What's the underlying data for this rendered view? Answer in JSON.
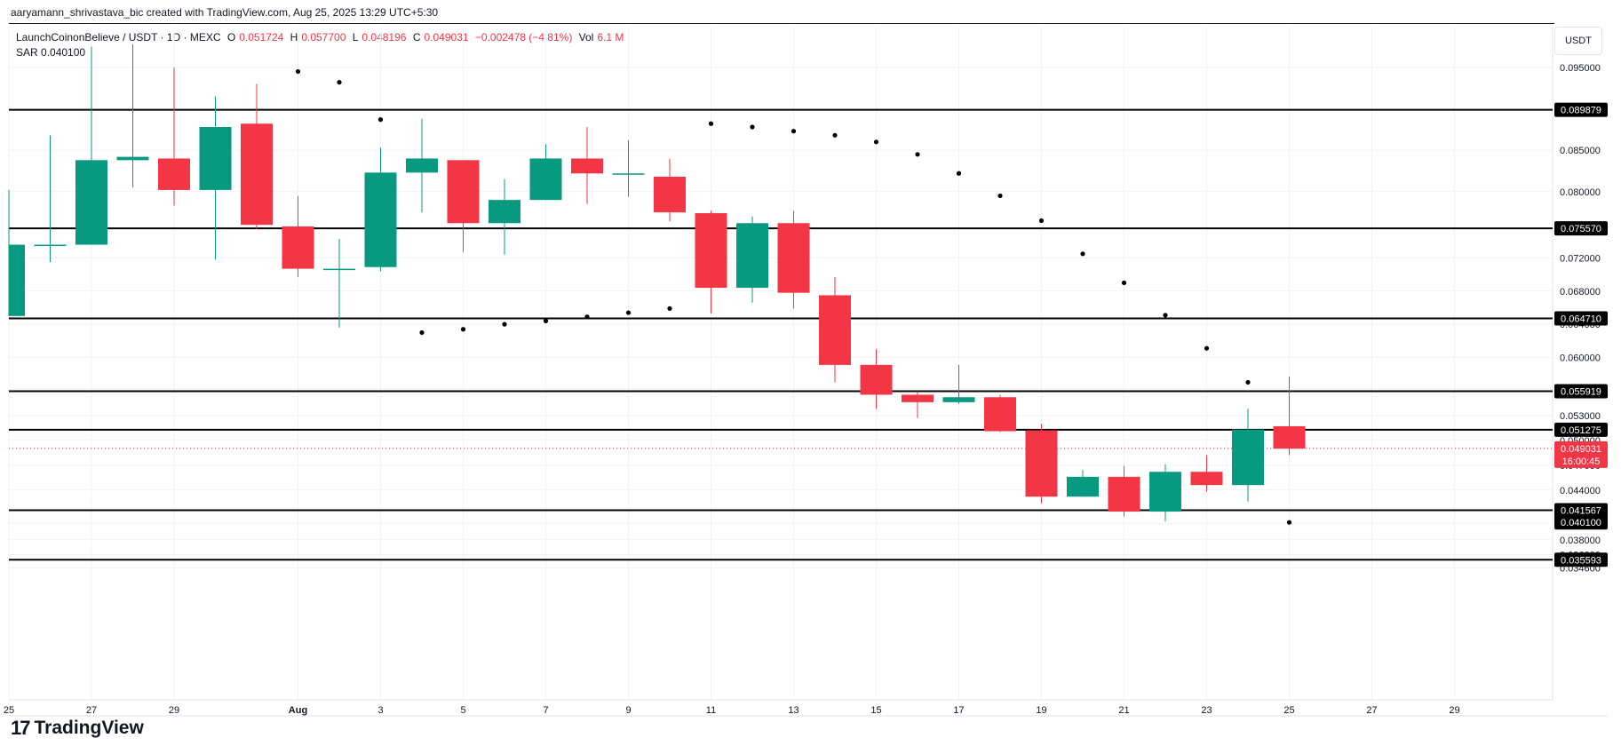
{
  "header": {
    "credit": "aaryamann_shrivastava_bic created with TradingView.com, Aug 25, 2025 13:29 UTC+5:30"
  },
  "legend": {
    "symbol": "LaunchCoinonBelieve / USDT · 1D · MEXC",
    "open_label": "O",
    "open": "0.051724",
    "high_label": "H",
    "high": "0.057700",
    "low_label": "L",
    "low": "0.048196",
    "close_label": "C",
    "close": "0.049031",
    "change": "−0.002478 (−4.81%)",
    "vol_label": "Vol",
    "vol": "6.1 M",
    "sar_label": "SAR",
    "sar_value": "0.040100"
  },
  "price_scale": {
    "unit": "USDT"
  },
  "branding": {
    "logo_text": "TradingView",
    "logo_icon": "tradingview-logo-icon"
  },
  "colors": {
    "up": "#089981",
    "down": "#f23645",
    "sar": "#000000",
    "level": "#000000"
  },
  "chart_data": {
    "type": "candlestick",
    "y_axis": {
      "ticks": [
        "0.095000",
        "0.085000",
        "0.080000",
        "0.072000",
        "0.068000",
        "0.064000",
        "0.060000",
        "0.053000",
        "0.050000",
        "0.047000",
        "0.044000",
        "0.040000",
        "0.038000",
        "0.036200",
        "0.034600"
      ]
    },
    "x_axis": {
      "ticks": [
        {
          "day": 25,
          "label": "25"
        },
        {
          "day": 27,
          "label": "27"
        },
        {
          "day": 29,
          "label": "29"
        },
        {
          "day": 32,
          "label": "Aug"
        },
        {
          "day": 34,
          "label": "3"
        },
        {
          "day": 36,
          "label": "5"
        },
        {
          "day": 38,
          "label": "7"
        },
        {
          "day": 40,
          "label": "9"
        },
        {
          "day": 42,
          "label": "11"
        },
        {
          "day": 44,
          "label": "13"
        },
        {
          "day": 46,
          "label": "15"
        },
        {
          "day": 48,
          "label": "17"
        },
        {
          "day": 50,
          "label": "19"
        },
        {
          "day": 52,
          "label": "21"
        },
        {
          "day": 54,
          "label": "23"
        },
        {
          "day": 56,
          "label": "25"
        },
        {
          "day": 58,
          "label": "27"
        },
        {
          "day": 60,
          "label": "29"
        }
      ]
    },
    "candles": [
      {
        "day": 25,
        "o": 0.065,
        "h": 0.0802,
        "l": 0.065,
        "c": 0.0736
      },
      {
        "day": 26,
        "o": 0.0736,
        "h": 0.0868,
        "l": 0.0715,
        "c": 0.0736
      },
      {
        "day": 27,
        "o": 0.0736,
        "h": 0.0975,
        "l": 0.0736,
        "c": 0.0838
      },
      {
        "day": 28,
        "o": 0.0838,
        "h": 0.0978,
        "l": 0.0805,
        "c": 0.0842
      },
      {
        "day": 29,
        "o": 0.084,
        "h": 0.095,
        "l": 0.0783,
        "c": 0.0802
      },
      {
        "day": 30,
        "o": 0.0802,
        "h": 0.0915,
        "l": 0.0718,
        "c": 0.0878
      },
      {
        "day": 31,
        "o": 0.0882,
        "h": 0.093,
        "l": 0.0755,
        "c": 0.076
      },
      {
        "day": 32,
        "o": 0.0758,
        "h": 0.0795,
        "l": 0.0697,
        "c": 0.0707
      },
      {
        "day": 33,
        "o": 0.0707,
        "h": 0.0743,
        "l": 0.0636,
        "c": 0.0707
      },
      {
        "day": 34,
        "o": 0.0709,
        "h": 0.0853,
        "l": 0.0704,
        "c": 0.0823
      },
      {
        "day": 35,
        "o": 0.0823,
        "h": 0.0888,
        "l": 0.0775,
        "c": 0.084
      },
      {
        "day": 36,
        "o": 0.0838,
        "h": 0.0838,
        "l": 0.0727,
        "c": 0.0762
      },
      {
        "day": 37,
        "o": 0.0762,
        "h": 0.0815,
        "l": 0.0724,
        "c": 0.079
      },
      {
        "day": 38,
        "o": 0.079,
        "h": 0.0857,
        "l": 0.079,
        "c": 0.084
      },
      {
        "day": 39,
        "o": 0.084,
        "h": 0.0878,
        "l": 0.0785,
        "c": 0.0822
      },
      {
        "day": 40,
        "o": 0.0822,
        "h": 0.0862,
        "l": 0.0794,
        "c": 0.0822
      },
      {
        "day": 41,
        "o": 0.0818,
        "h": 0.084,
        "l": 0.0764,
        "c": 0.0775
      },
      {
        "day": 42,
        "o": 0.0774,
        "h": 0.0777,
        "l": 0.0653,
        "c": 0.0684
      },
      {
        "day": 43,
        "o": 0.0684,
        "h": 0.077,
        "l": 0.0666,
        "c": 0.0762
      },
      {
        "day": 44,
        "o": 0.0762,
        "h": 0.0777,
        "l": 0.0659,
        "c": 0.0678
      },
      {
        "day": 45,
        "o": 0.0675,
        "h": 0.0697,
        "l": 0.057,
        "c": 0.0591
      },
      {
        "day": 46,
        "o": 0.0591,
        "h": 0.061,
        "l": 0.0538,
        "c": 0.0555
      },
      {
        "day": 47,
        "o": 0.0555,
        "h": 0.0559,
        "l": 0.0527,
        "c": 0.0546
      },
      {
        "day": 48,
        "o": 0.0546,
        "h": 0.0591,
        "l": 0.0544,
        "c": 0.0552
      },
      {
        "day": 49,
        "o": 0.0552,
        "h": 0.0555,
        "l": 0.051,
        "c": 0.0511
      },
      {
        "day": 50,
        "o": 0.0512,
        "h": 0.052,
        "l": 0.0424,
        "c": 0.0432
      },
      {
        "day": 51,
        "o": 0.0432,
        "h": 0.0464,
        "l": 0.0432,
        "c": 0.0456
      },
      {
        "day": 52,
        "o": 0.0456,
        "h": 0.0469,
        "l": 0.0408,
        "c": 0.0414
      },
      {
        "day": 53,
        "o": 0.0414,
        "h": 0.0471,
        "l": 0.0402,
        "c": 0.0462
      },
      {
        "day": 54,
        "o": 0.0462,
        "h": 0.0482,
        "l": 0.0438,
        "c": 0.0446
      },
      {
        "day": 55,
        "o": 0.0446,
        "h": 0.0538,
        "l": 0.0426,
        "c": 0.0513
      },
      {
        "day": 56,
        "o": 0.0517,
        "h": 0.0577,
        "l": 0.0482,
        "c": 0.049
      }
    ],
    "sar": [
      {
        "day": 32,
        "v": 0.0945
      },
      {
        "day": 33,
        "v": 0.0932
      },
      {
        "day": 34,
        "v": 0.0887
      },
      {
        "day": 35,
        "v": 0.063
      },
      {
        "day": 36,
        "v": 0.0634
      },
      {
        "day": 37,
        "v": 0.064
      },
      {
        "day": 38,
        "v": 0.0644
      },
      {
        "day": 39,
        "v": 0.0649
      },
      {
        "day": 40,
        "v": 0.0654
      },
      {
        "day": 41,
        "v": 0.0659
      },
      {
        "day": 42,
        "v": 0.0882
      },
      {
        "day": 43,
        "v": 0.0878
      },
      {
        "day": 44,
        "v": 0.0873
      },
      {
        "day": 45,
        "v": 0.0868
      },
      {
        "day": 46,
        "v": 0.086
      },
      {
        "day": 47,
        "v": 0.0845
      },
      {
        "day": 48,
        "v": 0.0822
      },
      {
        "day": 49,
        "v": 0.0795
      },
      {
        "day": 50,
        "v": 0.0765
      },
      {
        "day": 51,
        "v": 0.0725
      },
      {
        "day": 52,
        "v": 0.069
      },
      {
        "day": 53,
        "v": 0.0651
      },
      {
        "day": 54,
        "v": 0.0611
      },
      {
        "day": 55,
        "v": 0.057
      },
      {
        "day": 56,
        "v": 0.0401
      }
    ],
    "levels": [
      {
        "value": 0.089879,
        "label": "0.089879"
      },
      {
        "value": 0.07557,
        "label": "0.075570"
      },
      {
        "value": 0.06471,
        "label": "0.064710"
      },
      {
        "value": 0.055919,
        "label": "0.055919"
      },
      {
        "value": 0.051275,
        "label": "0.051275"
      },
      {
        "value": 0.041567,
        "label": "0.041567"
      },
      {
        "value": 0.035593,
        "label": "0.035593"
      }
    ],
    "sar_tag": {
      "value": 0.0401,
      "label": "0.040100"
    },
    "last_price": {
      "value": 0.049031,
      "label": "0.049031",
      "countdown": "16:00:45"
    }
  }
}
